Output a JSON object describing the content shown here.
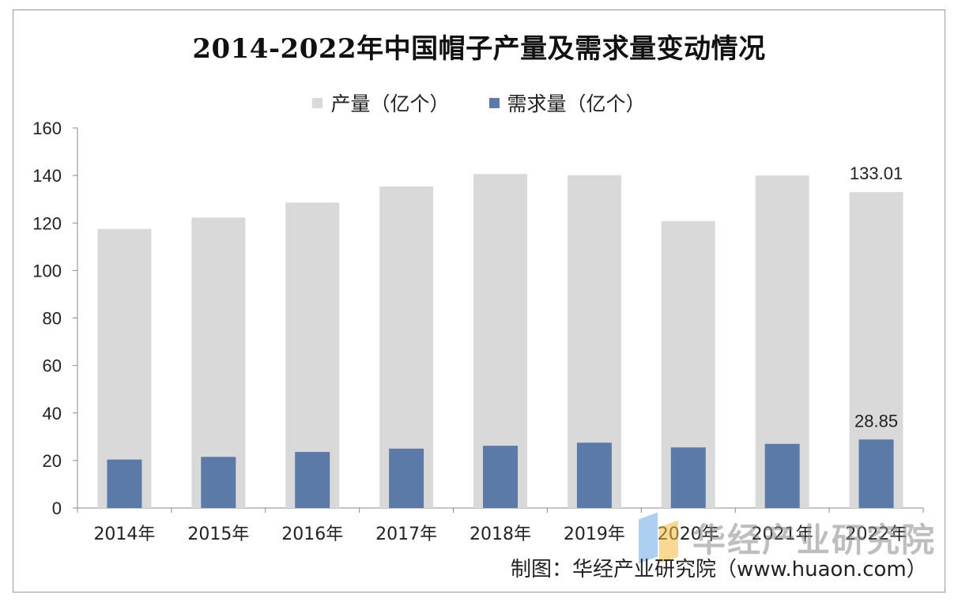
{
  "chart_data": {
    "type": "bar",
    "title": "2014-2022年中国帽子产量及需求量变动情况",
    "categories": [
      "2014年",
      "2015年",
      "2016年",
      "2017年",
      "2018年",
      "2019年",
      "2020年",
      "2021年",
      "2022年"
    ],
    "series": [
      {
        "name": "产量（亿个）",
        "color": "#d9d9d9",
        "values": [
          117.5,
          122.3,
          128.6,
          135.4,
          140.6,
          140.1,
          120.8,
          140.0,
          133.01
        ]
      },
      {
        "name": "需求量（亿个）",
        "color": "#5b7aa8",
        "values": [
          20.4,
          21.5,
          23.6,
          25.0,
          26.2,
          27.5,
          25.5,
          27.0,
          28.85
        ]
      }
    ],
    "data_labels": [
      {
        "series": 0,
        "index": 8,
        "text": "133.01"
      },
      {
        "series": 1,
        "index": 8,
        "text": "28.85"
      }
    ],
    "ylim": [
      0,
      160
    ],
    "yticks": [
      "0",
      "20",
      "40",
      "60",
      "80",
      "100",
      "120",
      "140",
      "160"
    ],
    "legend_position": "top",
    "grid": false
  },
  "footer": {
    "source": "制图：华经产业研究院（www.huaon.com）"
  },
  "watermark": {
    "text": "华经产业研究院"
  }
}
